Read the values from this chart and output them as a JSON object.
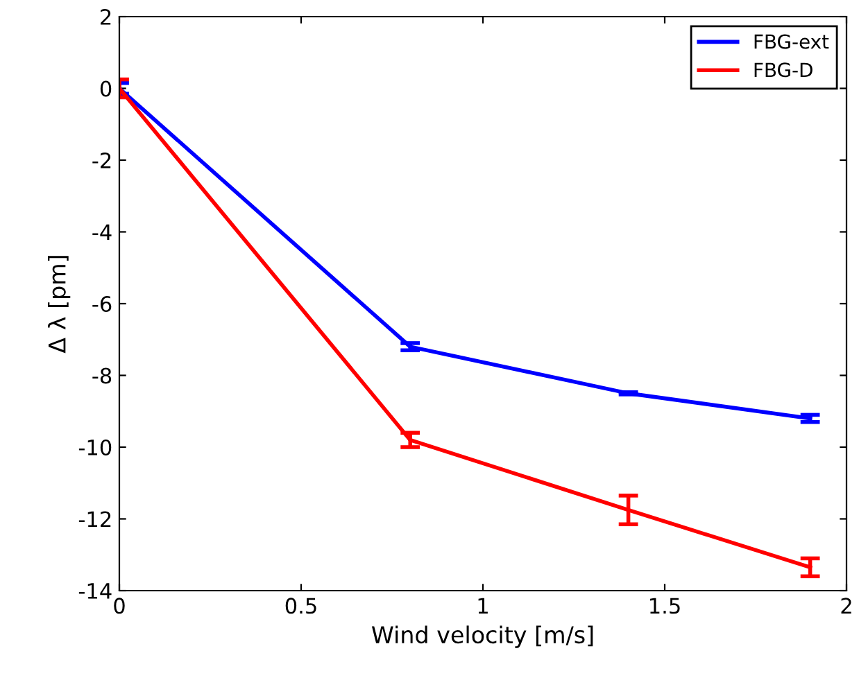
{
  "chart_data": {
    "type": "line",
    "xlabel": "Wind velocity [m/s]",
    "ylabel": "Δ λ [pm]",
    "x": [
      0,
      0.8,
      1.4,
      1.9
    ],
    "series": [
      {
        "name": "FBG-ext",
        "color": "#0000ff",
        "values": [
          0,
          -7.2,
          -8.5,
          -9.2
        ],
        "errors": [
          0.15,
          0.1,
          0.03,
          0.1
        ]
      },
      {
        "name": "FBG-D",
        "color": "#ff0000",
        "values": [
          0,
          -9.8,
          -11.75,
          -13.35
        ],
        "errors": [
          0.25,
          0.2,
          0.4,
          0.25
        ]
      }
    ],
    "xlim": [
      0,
      2
    ],
    "xticks": [
      0,
      0.5,
      1,
      1.5,
      2
    ],
    "ylim": [
      -14,
      2
    ],
    "yticks": [
      -14,
      -12,
      -10,
      -8,
      -6,
      -4,
      -2,
      0,
      2
    ],
    "grid": false,
    "legend": "top right",
    "marker": "none",
    "line_style": "solid"
  }
}
